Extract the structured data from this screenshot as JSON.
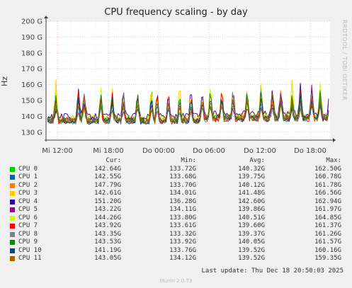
{
  "chart_data": {
    "type": "line",
    "title": "CPU frequency scaling - by day",
    "ylabel": "Hz",
    "yticks": [
      "130 G",
      "140 G",
      "150 G",
      "160 G",
      "170 G",
      "180 G",
      "190 G",
      "200 G"
    ],
    "ylim": [
      125,
      200
    ],
    "xticks": [
      "Mi 12:00",
      "Mi 18:00",
      "Do 00:00",
      "Do 06:00",
      "Do 12:00",
      "Do 18:00"
    ],
    "grid": true,
    "side_label": "RRDTOOL / TOBI OETIKER",
    "series": [
      {
        "name": "CPU 0",
        "color": "#00cc00",
        "cur": "142.64G",
        "min": "133.72G",
        "avg": "140.32G",
        "max": "162.50G"
      },
      {
        "name": "CPU 1",
        "color": "#0066b3",
        "cur": "142.55G",
        "min": "133.68G",
        "avg": "139.75G",
        "max": "160.78G"
      },
      {
        "name": "CPU 2",
        "color": "#ff8000",
        "cur": "147.79G",
        "min": "133.70G",
        "avg": "140.12G",
        "max": "161.78G"
      },
      {
        "name": "CPU 3",
        "color": "#ffcc00",
        "cur": "142.61G",
        "min": "134.01G",
        "avg": "141.48G",
        "max": "166.56G"
      },
      {
        "name": "CPU 4",
        "color": "#330099",
        "cur": "151.20G",
        "min": "136.28G",
        "avg": "142.60G",
        "max": "162.94G"
      },
      {
        "name": "CPU 5",
        "color": "#990099",
        "cur": "143.22G",
        "min": "134.11G",
        "avg": "139.86G",
        "max": "161.97G"
      },
      {
        "name": "CPU 6",
        "color": "#ccff00",
        "cur": "144.26G",
        "min": "133.80G",
        "avg": "140.51G",
        "max": "164.85G"
      },
      {
        "name": "CPU 7",
        "color": "#ff0000",
        "cur": "143.92G",
        "min": "133.61G",
        "avg": "139.60G",
        "max": "161.37G"
      },
      {
        "name": "CPU 8",
        "color": "#808080",
        "cur": "143.35G",
        "min": "133.32G",
        "avg": "139.37G",
        "max": "161.26G"
      },
      {
        "name": "CPU 9",
        "color": "#008f00",
        "cur": "143.53G",
        "min": "133.92G",
        "avg": "140.05G",
        "max": "161.57G"
      },
      {
        "name": "CPU 10",
        "color": "#00487d",
        "cur": "141.19G",
        "min": "133.76G",
        "avg": "139.52G",
        "max": "160.16G"
      },
      {
        "name": "CPU 11",
        "color": "#b35a00",
        "cur": "143.05G",
        "min": "134.12G",
        "avg": "139.52G",
        "max": "159.35G"
      }
    ]
  },
  "legend_headers": {
    "cur": "Cur:",
    "min": "Min:",
    "avg": "Avg:",
    "max": "Max:"
  },
  "last_update": "Last update: Thu Dec 18 20:50:03 2025",
  "footer": "Munin 2.0.73"
}
